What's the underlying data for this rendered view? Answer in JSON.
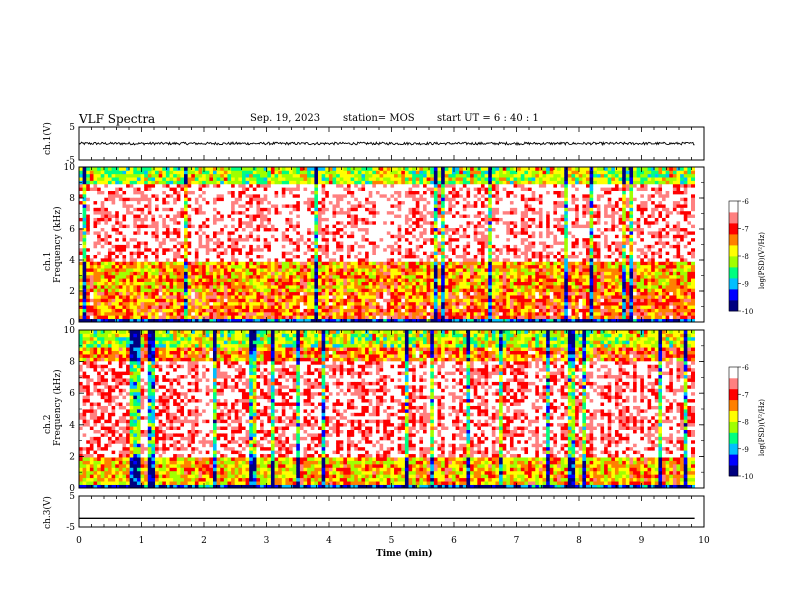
{
  "header": {
    "title": "VLF Spectra",
    "date": "Sep. 19, 2023",
    "station": "station= MOS",
    "start": "start  UT =   6 : 40 : 1"
  },
  "chart_data": [
    {
      "id": "ch1-waveform",
      "type": "line",
      "ylabel": "ch.1(V)",
      "xlim": [
        0,
        10
      ],
      "ylim": [
        -5,
        5
      ],
      "yticks": [
        "5",
        "-5"
      ],
      "series": [
        {
          "values_note": "noisy waveform",
          "mean": 0,
          "amplitude": 0.4
        }
      ],
      "x_end": 9.85
    },
    {
      "id": "ch1-spectrogram",
      "type": "heatmap",
      "ylabel": "Frequency (kHz)",
      "channel": "ch.1",
      "xlim": [
        0,
        10
      ],
      "ylim": [
        0,
        10
      ],
      "yticks": [
        "0",
        "2",
        "4",
        "6",
        "8",
        "10"
      ],
      "colorbar": {
        "label": "log(PSD)(V²/Hz)",
        "range": [
          -10,
          -6
        ],
        "ticks": [
          "-6",
          "-7",
          "-8",
          "-9",
          "-10"
        ]
      },
      "bands_khz": [
        {
          "from": 0,
          "to": 0.3,
          "level": -9.5
        },
        {
          "from": 0.3,
          "to": 2,
          "level": -7.3
        },
        {
          "from": 2,
          "to": 4,
          "level": -7.6
        },
        {
          "from": 4,
          "to": 9,
          "level": -6.4
        },
        {
          "from": 9,
          "to": 10,
          "level": -8.2
        }
      ]
    },
    {
      "id": "ch2-spectrogram",
      "type": "heatmap",
      "ylabel": "Frequency (kHz)",
      "channel": "ch.2",
      "xlim": [
        0,
        10
      ],
      "ylim": [
        0,
        10
      ],
      "yticks": [
        "0",
        "2",
        "4",
        "6",
        "8",
        "10"
      ],
      "colorbar": {
        "label": "log(PSD)(V²/Hz)",
        "range": [
          -10,
          -6
        ],
        "ticks": [
          "-6",
          "-7",
          "-8",
          "-9",
          "-10"
        ]
      },
      "bands_khz": [
        {
          "from": 0,
          "to": 0.3,
          "level": -9.5
        },
        {
          "from": 0.3,
          "to": 2,
          "level": -7.7
        },
        {
          "from": 2,
          "to": 8,
          "level": -6.5
        },
        {
          "from": 8,
          "to": 9,
          "level": -7.4
        },
        {
          "from": 9,
          "to": 10,
          "level": -8.2
        }
      ]
    },
    {
      "id": "ch3-waveform",
      "type": "line",
      "ylabel": "ch.3(V)",
      "xlim": [
        0,
        10
      ],
      "ylim": [
        -5,
        5
      ],
      "yticks": [
        "5",
        "-5"
      ],
      "series": [
        {
          "values_note": "flat",
          "mean": -2.2,
          "amplitude": 0
        }
      ],
      "x_end": 9.85
    }
  ],
  "xaxis": {
    "label": "Time (min)",
    "ticks": [
      "0",
      "1",
      "2",
      "3",
      "4",
      "5",
      "6",
      "7",
      "8",
      "9",
      "10"
    ]
  },
  "colors": {
    "scale": [
      "#000080",
      "#0000ff",
      "#00bfff",
      "#00ff80",
      "#a0ff00",
      "#ffff00",
      "#ff8000",
      "#ff0000",
      "#ff8080",
      "#ffffff"
    ]
  }
}
